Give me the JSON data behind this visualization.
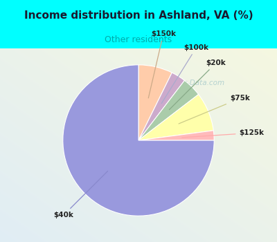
{
  "title": "Income distribution in Ashland, VA (%)",
  "subtitle": "Other residents",
  "subtitle_color": "#00aaaa",
  "title_color": "#1a1a2e",
  "background_color": "#00ffff",
  "chart_bg_top": "#e8f0f0",
  "chart_bg_bottom": "#d0e8d8",
  "slices": [
    {
      "label": "$40k",
      "value": 72,
      "color": "#9999dd"
    },
    {
      "label": "$125k",
      "value": 2,
      "color": "#ffbbbb"
    },
    {
      "label": "$75k",
      "value": 8,
      "color": "#ffffaa"
    },
    {
      "label": "$20k",
      "value": 4,
      "color": "#aaccaa"
    },
    {
      "label": "$100k",
      "value": 3,
      "color": "#ccaacc"
    },
    {
      "label": "$150k",
      "value": 7,
      "color": "#ffccaa"
    }
  ],
  "watermark": "City-Data.com",
  "watermark_color": "#aacccc",
  "figsize": [
    4.0,
    3.5
  ],
  "dpi": 100
}
